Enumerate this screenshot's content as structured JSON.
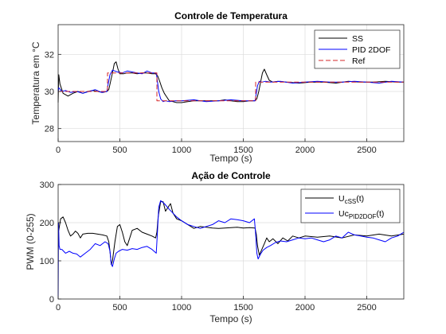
{
  "chart_data": [
    {
      "type": "line",
      "title": "Controle de Temperatura",
      "xlabel": "Tempo (s)",
      "ylabel": "Temperatura em °C",
      "xlim": [
        0,
        2800
      ],
      "ylim": [
        27.3,
        33.6
      ],
      "xticks": [
        "0",
        "500",
        "1000",
        "1500",
        "2000",
        "2500"
      ],
      "yticks": [
        "28",
        "30",
        "32"
      ],
      "grid": true,
      "legend_position": "top-right",
      "series": [
        {
          "name": "SS",
          "color": "#000000",
          "style": "solid",
          "x": [
            0,
            5,
            15,
            40,
            80,
            120,
            160,
            200,
            240,
            280,
            320,
            360,
            395,
            410,
            425,
            440,
            455,
            470,
            485,
            500,
            530,
            560,
            600,
            640,
            680,
            720,
            760,
            790,
            805,
            820,
            840,
            860,
            880,
            900,
            930,
            960,
            1000,
            1050,
            1100,
            1150,
            1200,
            1250,
            1300,
            1350,
            1400,
            1450,
            1500,
            1550,
            1595,
            1610,
            1625,
            1640,
            1655,
            1670,
            1690,
            1710,
            1740,
            1780,
            1850,
            1950,
            2050,
            2150,
            2250,
            2350,
            2450,
            2550,
            2650,
            2750,
            2800
          ],
          "y": [
            29.4,
            30.9,
            30.4,
            29.9,
            29.75,
            29.9,
            30.0,
            29.9,
            30.0,
            30.05,
            30.0,
            29.95,
            30.0,
            30.1,
            30.55,
            31.0,
            31.5,
            31.6,
            31.2,
            30.95,
            30.95,
            31.0,
            31.0,
            30.95,
            31.0,
            31.0,
            30.95,
            30.95,
            30.85,
            30.6,
            30.2,
            29.9,
            29.7,
            29.5,
            29.45,
            29.4,
            29.4,
            29.45,
            29.5,
            29.5,
            29.5,
            29.5,
            29.5,
            29.55,
            29.5,
            29.45,
            29.45,
            29.5,
            29.5,
            29.6,
            30.0,
            30.5,
            31.0,
            31.2,
            30.9,
            30.6,
            30.5,
            30.55,
            30.5,
            30.45,
            30.5,
            30.5,
            30.45,
            30.55,
            30.5,
            30.5,
            30.55,
            30.5,
            30.5
          ]
        },
        {
          "name": "PID 2DOF",
          "color": "#0000ff",
          "style": "solid",
          "x": [
            0,
            5,
            30,
            60,
            100,
            150,
            200,
            250,
            300,
            350,
            395,
            405,
            420,
            440,
            460,
            480,
            520,
            560,
            600,
            640,
            680,
            720,
            760,
            795,
            805,
            815,
            830,
            850,
            870,
            900,
            950,
            1000,
            1100,
            1200,
            1300,
            1400,
            1500,
            1595,
            1605,
            1615,
            1630,
            1650,
            1680,
            1720,
            1800,
            1900,
            2000,
            2100,
            2200,
            2300,
            2400,
            2500,
            2600,
            2700,
            2800
          ],
          "y": [
            30.0,
            30.2,
            30.0,
            30.05,
            29.95,
            30.0,
            29.9,
            30.0,
            30.1,
            29.95,
            30.0,
            30.4,
            30.9,
            31.15,
            31.1,
            31.05,
            31.0,
            31.1,
            31.05,
            31.0,
            30.95,
            31.1,
            31.0,
            31.0,
            30.5,
            30.0,
            29.6,
            29.45,
            29.5,
            29.45,
            29.5,
            29.5,
            29.55,
            29.45,
            29.5,
            29.55,
            29.5,
            29.5,
            29.9,
            30.3,
            30.55,
            30.5,
            30.55,
            30.5,
            30.55,
            30.45,
            30.5,
            30.55,
            30.5,
            30.5,
            30.55,
            30.5,
            30.45,
            30.55,
            30.5
          ]
        },
        {
          "name": "Ref",
          "color": "#d62728",
          "style": "dashed",
          "x": [
            0,
            400,
            400,
            800,
            800,
            1600,
            1600,
            2800
          ],
          "y": [
            30,
            30,
            31,
            31,
            29.5,
            29.5,
            30.5,
            30.5
          ]
        }
      ]
    },
    {
      "type": "line",
      "title": "Ação de Controle",
      "xlabel": "Tempo (s)",
      "ylabel": "PWM (0-255)",
      "xlim": [
        0,
        2800
      ],
      "ylim": [
        0,
        300
      ],
      "xticks": [
        "0",
        "500",
        "1000",
        "1500",
        "2000",
        "2500"
      ],
      "yticks": [
        "0",
        "100",
        "200",
        "300"
      ],
      "grid": true,
      "legend_position": "top-right",
      "series": [
        {
          "name": "U_cSS(t)",
          "legend_main": "U",
          "legend_sub": "cSS",
          "legend_suffix": "(t)",
          "color": "#000000",
          "style": "solid",
          "x": [
            0,
            5,
            20,
            40,
            60,
            80,
            100,
            120,
            140,
            160,
            180,
            200,
            240,
            280,
            320,
            360,
            395,
            410,
            420,
            430,
            440,
            460,
            480,
            500,
            520,
            540,
            560,
            580,
            600,
            640,
            680,
            720,
            760,
            790,
            800,
            810,
            830,
            850,
            870,
            890,
            910,
            930,
            960,
            1000,
            1050,
            1100,
            1150,
            1200,
            1250,
            1300,
            1350,
            1400,
            1450,
            1500,
            1550,
            1595,
            1605,
            1615,
            1630,
            1650,
            1670,
            1690,
            1710,
            1740,
            1780,
            1820,
            1860,
            1900,
            1950,
            2000,
            2100,
            2200,
            2300,
            2400,
            2500,
            2600,
            2700,
            2800
          ],
          "y": [
            200,
            180,
            210,
            215,
            200,
            180,
            165,
            170,
            178,
            172,
            160,
            170,
            172,
            172,
            170,
            168,
            165,
            150,
            125,
            90,
            100,
            150,
            190,
            195,
            175,
            150,
            140,
            160,
            180,
            185,
            175,
            170,
            165,
            160,
            175,
            215,
            255,
            255,
            230,
            240,
            250,
            225,
            210,
            205,
            195,
            185,
            190,
            188,
            186,
            185,
            186,
            187,
            188,
            186,
            187,
            186,
            170,
            140,
            115,
            130,
            145,
            160,
            150,
            158,
            145,
            160,
            152,
            165,
            160,
            165,
            162,
            165,
            160,
            168,
            165,
            170,
            165,
            170
          ]
        },
        {
          "name": "Uc_PID2DOF(t)",
          "legend_main": "Uc",
          "legend_sub": "PID2DOF",
          "legend_suffix": "(t)",
          "color": "#0000ff",
          "style": "solid",
          "x": [
            0,
            3,
            8,
            15,
            30,
            60,
            90,
            120,
            150,
            180,
            220,
            260,
            300,
            340,
            380,
            405,
            420,
            430,
            440,
            455,
            470,
            490,
            520,
            560,
            600,
            640,
            680,
            720,
            760,
            795,
            805,
            815,
            830,
            860,
            900,
            960,
            1000,
            1050,
            1100,
            1150,
            1200,
            1250,
            1300,
            1350,
            1400,
            1450,
            1500,
            1550,
            1590,
            1600,
            1610,
            1620,
            1640,
            1660,
            1690,
            1720,
            1760,
            1800,
            1850,
            1900,
            1950,
            2000,
            2050,
            2100,
            2150,
            2200,
            2250,
            2300,
            2350,
            2400,
            2450,
            2500,
            2550,
            2600,
            2650,
            2700,
            2750,
            2800
          ],
          "y": [
            0,
            200,
            140,
            130,
            130,
            120,
            125,
            120,
            118,
            110,
            120,
            130,
            145,
            140,
            150,
            145,
            125,
            92,
            85,
            105,
            120,
            125,
            130,
            128,
            132,
            130,
            135,
            138,
            130,
            120,
            180,
            240,
            258,
            250,
            235,
            215,
            205,
            195,
            190,
            185,
            190,
            195,
            205,
            200,
            210,
            208,
            205,
            200,
            210,
            170,
            120,
            105,
            118,
            128,
            135,
            140,
            148,
            152,
            150,
            155,
            160,
            158,
            160,
            155,
            150,
            155,
            165,
            160,
            175,
            168,
            165,
            162,
            160,
            155,
            150,
            160,
            165,
            175
          ]
        }
      ]
    }
  ]
}
